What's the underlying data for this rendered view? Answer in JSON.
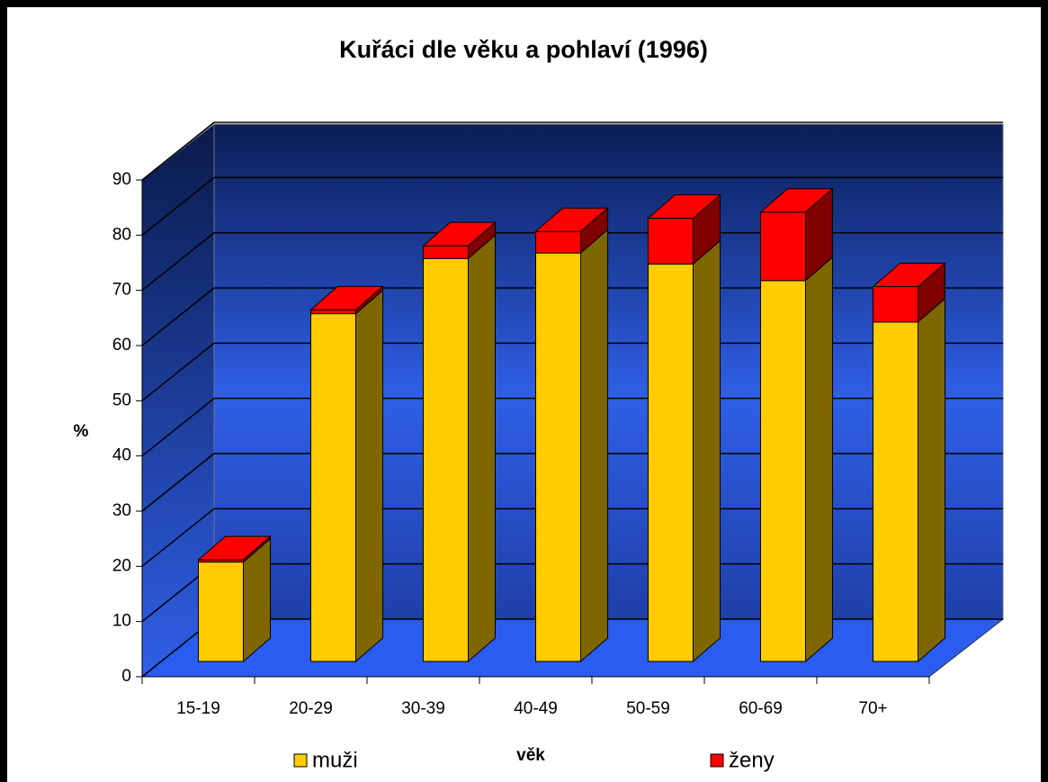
{
  "chart_data": {
    "type": "bar",
    "stacked": true,
    "three_d": true,
    "title": "Kuřáci dle věku a pohlaví (1996)",
    "x_label": "věk",
    "y_label": "%",
    "categories": [
      "15-19",
      "20-29",
      "30-39",
      "40-49",
      "50-59",
      "60-69",
      "70+"
    ],
    "series": [
      {
        "name": "muži",
        "color": "#ffcc00",
        "side_color": "#806600",
        "values": [
          18,
          63,
          73,
          74,
          72,
          69,
          61.5
        ]
      },
      {
        "name": "ženy",
        "color": "#ff0000",
        "side_color": "#800000",
        "values": [
          0.4,
          0.7,
          2.3,
          3.9,
          8.3,
          12.4,
          6.4
        ]
      }
    ],
    "ylim": [
      0,
      90
    ],
    "yticks": [
      0,
      10,
      20,
      30,
      40,
      50,
      60,
      70,
      80,
      90
    ],
    "grid": true,
    "legend": "bottom"
  }
}
